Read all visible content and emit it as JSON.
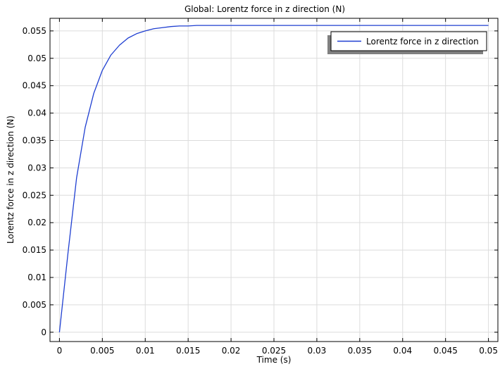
{
  "chart_data": {
    "type": "line",
    "title": "Global: Lorentz force in z direction (N)",
    "xlabel": "Time (s)",
    "ylabel": "Lorentz force in z direction (N)",
    "xlim": [
      -0.0011,
      0.0511
    ],
    "ylim": [
      -0.0017,
      0.0573
    ],
    "x_ticks": [
      0,
      0.005,
      0.01,
      0.015,
      0.02,
      0.025,
      0.03,
      0.035,
      0.04,
      0.045,
      0.05
    ],
    "x_tick_labels": [
      "0",
      "0.005",
      "0.01",
      "0.015",
      "0.02",
      "0.025",
      "0.03",
      "0.035",
      "0.04",
      "0.045",
      "0.05"
    ],
    "y_ticks": [
      0,
      0.005,
      0.01,
      0.015,
      0.02,
      0.025,
      0.03,
      0.035,
      0.04,
      0.045,
      0.05,
      0.055
    ],
    "y_tick_labels": [
      "0",
      "0.005",
      "0.01",
      "0.015",
      "0.02",
      "0.025",
      "0.03",
      "0.035",
      "0.04",
      "0.045",
      "0.05",
      "0.055"
    ],
    "grid": true,
    "legend_position": "top-right",
    "series": [
      {
        "name": "Lorentz force in z direction",
        "color": "#1f3fd1",
        "x": [
          0,
          0.001,
          0.002,
          0.003,
          0.004,
          0.005,
          0.006,
          0.007,
          0.008,
          0.009,
          0.01,
          0.011,
          0.012,
          0.013,
          0.014,
          0.015,
          0.016,
          0.017,
          0.018,
          0.019,
          0.02,
          0.025,
          0.03,
          0.035,
          0.04,
          0.045,
          0.05
        ],
        "y": [
          0,
          0.0145,
          0.0282,
          0.0374,
          0.0436,
          0.0478,
          0.0506,
          0.0524,
          0.0537,
          0.0545,
          0.055,
          0.0554,
          0.0556,
          0.0558,
          0.0559,
          0.0559,
          0.056,
          0.056,
          0.056,
          0.056,
          0.056,
          0.056,
          0.056,
          0.056,
          0.056,
          0.056,
          0.056
        ]
      }
    ]
  }
}
